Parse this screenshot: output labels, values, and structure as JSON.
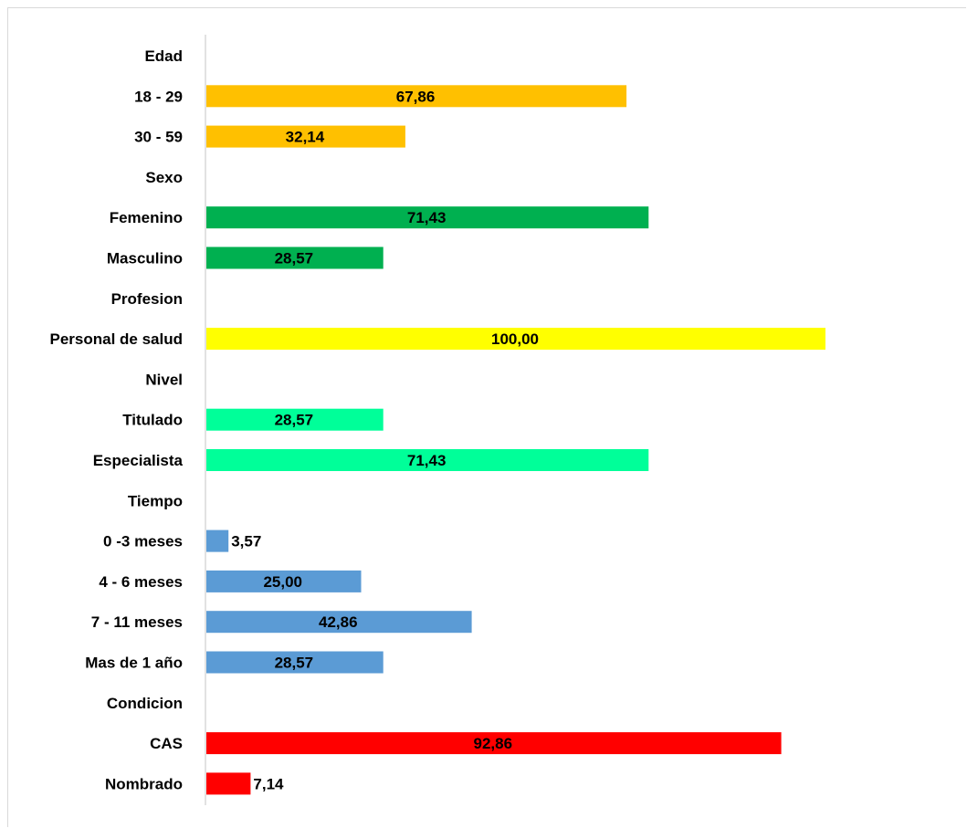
{
  "chart_data": {
    "type": "bar",
    "orientation": "horizontal",
    "xlim": [
      0,
      100
    ],
    "grid": false,
    "categories": [
      {
        "label": "Edad",
        "value": null,
        "color": null
      },
      {
        "label": "18 - 29",
        "value": 67.86,
        "value_label": "67,86",
        "color": "#FFC000"
      },
      {
        "label": "30 - 59",
        "value": 32.14,
        "value_label": "32,14",
        "color": "#FFC000"
      },
      {
        "label": "Sexo",
        "value": null,
        "color": null
      },
      {
        "label": "Femenino",
        "value": 71.43,
        "value_label": "71,43",
        "color": "#00B050"
      },
      {
        "label": "Masculino",
        "value": 28.57,
        "value_label": "28,57",
        "color": "#00B050"
      },
      {
        "label": "Profesion",
        "value": null,
        "color": null
      },
      {
        "label": "Personal de salud",
        "value": 100.0,
        "value_label": "100,00",
        "color": "#FFFF00"
      },
      {
        "label": "Nivel",
        "value": null,
        "color": null
      },
      {
        "label": "Titulado",
        "value": 28.57,
        "value_label": "28,57",
        "color": "#00FF99"
      },
      {
        "label": "Especialista",
        "value": 71.43,
        "value_label": "71,43",
        "color": "#00FF99"
      },
      {
        "label": "Tiempo",
        "value": null,
        "color": null
      },
      {
        "label": "0 -3 meses",
        "value": 3.57,
        "value_label": "3,57",
        "color": "#5B9BD5"
      },
      {
        "label": "4 - 6 meses",
        "value": 25.0,
        "value_label": "25,00",
        "color": "#5B9BD5"
      },
      {
        "label": "7 - 11 meses",
        "value": 42.86,
        "value_label": "42,86",
        "color": "#5B9BD5"
      },
      {
        "label": "Mas de  1 año",
        "value": 28.57,
        "value_label": "28,57",
        "color": "#5B9BD5"
      },
      {
        "label": "Condicion",
        "value": null,
        "color": null
      },
      {
        "label": "CAS",
        "value": 92.86,
        "value_label": "92,86",
        "color": "#FF0000"
      },
      {
        "label": "Nombrado",
        "value": 7.14,
        "value_label": "7,14",
        "color": "#FF0000"
      }
    ]
  }
}
